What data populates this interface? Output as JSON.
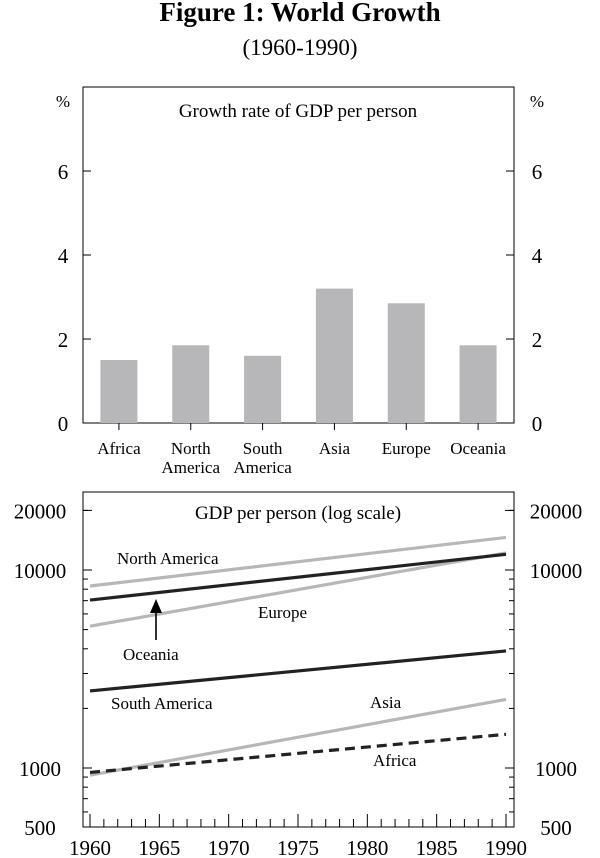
{
  "figure": {
    "title": "Figure 1: World Growth",
    "subtitle": "(1960-1990)"
  },
  "chart_data": [
    {
      "type": "bar",
      "title": "Growth rate of GDP per person",
      "unit_left": "%",
      "unit_right": "%",
      "categories": [
        "Africa",
        "North America",
        "South America",
        "Asia",
        "Europe",
        "Oceania"
      ],
      "category_lines": [
        [
          "Africa"
        ],
        [
          "North",
          "America"
        ],
        [
          "South",
          "America"
        ],
        [
          "Asia"
        ],
        [
          "Europe"
        ],
        [
          "Oceania"
        ]
      ],
      "values": [
        1.5,
        1.85,
        1.6,
        3.2,
        2.85,
        1.85
      ],
      "ylim": [
        0,
        8
      ],
      "yticks": [
        0,
        2,
        4,
        6
      ],
      "bar_color": "#b7b7b9",
      "grid": false
    },
    {
      "type": "line",
      "title": "GDP per person (log scale)",
      "y_scale": "log",
      "ylim": [
        500,
        25000
      ],
      "yticks": [
        500,
        1000,
        10000,
        20000
      ],
      "xlim": [
        1960,
        1990
      ],
      "xticks": [
        1960,
        1965,
        1970,
        1975,
        1980,
        1985,
        1990
      ],
      "series": [
        {
          "name": "North America",
          "x": [
            1960,
            1990
          ],
          "values": [
            8300,
            14600
          ],
          "color": "#b7b7b9",
          "style": "solid"
        },
        {
          "name": "Europe",
          "x": [
            1960,
            1990
          ],
          "values": [
            5200,
            12200
          ],
          "color": "#b7b7b9",
          "style": "solid"
        },
        {
          "name": "Oceania",
          "x": [
            1960,
            1990
          ],
          "values": [
            7050,
            12000
          ],
          "color": "#222222",
          "style": "solid"
        },
        {
          "name": "South America",
          "x": [
            1960,
            1990
          ],
          "values": [
            2450,
            3900
          ],
          "color": "#222222",
          "style": "solid"
        },
        {
          "name": "Asia",
          "x": [
            1960,
            1990
          ],
          "values": [
            920,
            2220
          ],
          "color": "#b7b7b9",
          "style": "solid"
        },
        {
          "name": "Africa",
          "x": [
            1960,
            1990
          ],
          "values": [
            950,
            1480
          ],
          "color": "#222222",
          "style": "dashed"
        }
      ],
      "annotations": [
        "North America",
        "Europe",
        "Oceania",
        "South America",
        "Asia",
        "Africa"
      ],
      "grid": false
    }
  ]
}
